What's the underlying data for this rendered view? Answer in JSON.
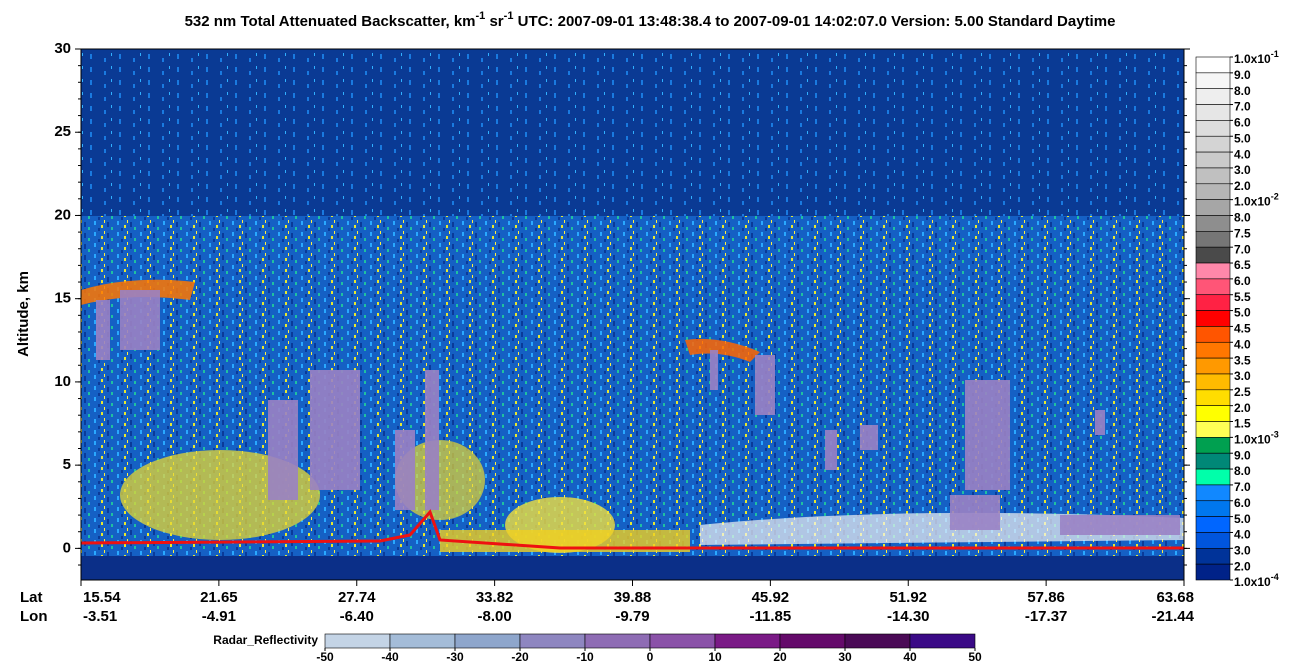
{
  "chart_data": {
    "type": "curtain",
    "title": [
      "532 nm Total Attenuated Backscatter, km",
      "-1",
      " sr",
      "-1",
      "    UTC:  2007-09-01 13:48:38.4  to  2007-09-01 14:02:07.0    Version: 5.00  Standard  Daytime"
    ],
    "ylabel": "Altitude, km",
    "ylim": [
      -1.9,
      30
    ],
    "yticks": [
      0,
      5,
      10,
      15,
      20,
      25,
      30
    ],
    "lat_label": "Lat",
    "lon_label": "Lon",
    "lat": [
      15.54,
      21.65,
      27.74,
      33.82,
      39.88,
      45.92,
      51.92,
      57.86,
      63.68
    ],
    "lon": [
      -3.51,
      -4.91,
      {
        "value": -6.4,
        "label": "-6.40"
      },
      {
        "value": -8,
        "label": "-8.00"
      },
      -9.79,
      -11.85,
      {
        "value": -14.3,
        "label": "-14.30"
      },
      -17.37,
      -21.44
    ],
    "colorbar": {
      "levels": [
        {
          "label": "1.0x10",
          "sup": "-1"
        },
        "9.0",
        "8.0",
        "7.0",
        "6.0",
        "5.0",
        "4.0",
        "3.0",
        "2.0",
        {
          "label": "1.0x10",
          "sup": "-2"
        },
        "8.0",
        "7.5",
        "7.0",
        "6.5",
        "6.0",
        "5.5",
        "5.0",
        "4.5",
        "4.0",
        "3.5",
        "3.0",
        "2.5",
        "2.0",
        "1.5",
        {
          "label": "1.0x10",
          "sup": "-3"
        },
        "9.0",
        "8.0",
        "7.0",
        "6.0",
        "5.0",
        "4.0",
        "3.0",
        "2.0",
        {
          "label": "1.0x10",
          "sup": "-4"
        }
      ],
      "colors": [
        "#ffffff",
        "#f6f6f6",
        "#eeeeee",
        "#e6e6e6",
        "#dddddd",
        "#d4d4d4",
        "#cacaca",
        "#c0c0c0",
        "#b6b6b6",
        "#a6a6a6",
        "#8e8e8e",
        "#767676",
        "#4a4a4a",
        "#ff88aa",
        "#ff5577",
        "#ff2244",
        "#ff0000",
        "#ff5500",
        "#ff7700",
        "#ff9900",
        "#ffbb00",
        "#ffdd00",
        "#ffff00",
        "#ffff55",
        "#00a050",
        "#008877",
        "#00ffaa",
        "#1188ff",
        "#0077ee",
        "#0066ff",
        "#0055dd",
        "#003399",
        "#002288"
      ]
    },
    "radar_colorbar": {
      "label": "Radar_Reflectivity",
      "ticks": [
        -50,
        -40,
        -30,
        -20,
        -10,
        0,
        10,
        20,
        30,
        40,
        50
      ],
      "colors": [
        "#c4d4e6",
        "#a4bcd8",
        "#8ea6cc",
        "#8e86c0",
        "#8e6cb4",
        "#8a52a8",
        "#7a1a86",
        "#640a6a",
        "#4a0a56",
        "#3a0a86"
      ]
    }
  }
}
